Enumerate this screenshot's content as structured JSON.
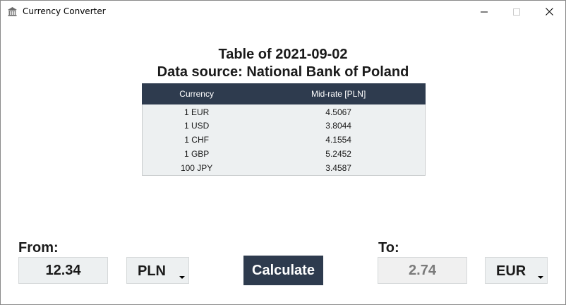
{
  "window": {
    "title": "Currency Converter",
    "icon": "bank-building-icon"
  },
  "header": {
    "table_date_line": "Table of 2021-09-02",
    "source_line": "Data source: National Bank of Poland"
  },
  "rates_table": {
    "columns": [
      "Currency",
      "Mid-rate [PLN]"
    ],
    "rows": [
      {
        "currency": "1 EUR",
        "rate": "4.5067"
      },
      {
        "currency": "1 USD",
        "rate": "3.8044"
      },
      {
        "currency": "1 CHF",
        "rate": "4.1554"
      },
      {
        "currency": "1 GBP",
        "rate": "5.2452"
      },
      {
        "currency": "100 JPY",
        "rate": "3.4587"
      }
    ]
  },
  "converter": {
    "from_label": "From:",
    "from_amount": "12.34",
    "from_currency": "PLN",
    "to_label": "To:",
    "to_amount": "2.74",
    "to_currency": "EUR",
    "calculate_label": "Calculate"
  },
  "colors": {
    "accent": "#2e3b4e",
    "field_bg": "#edf0f1"
  }
}
